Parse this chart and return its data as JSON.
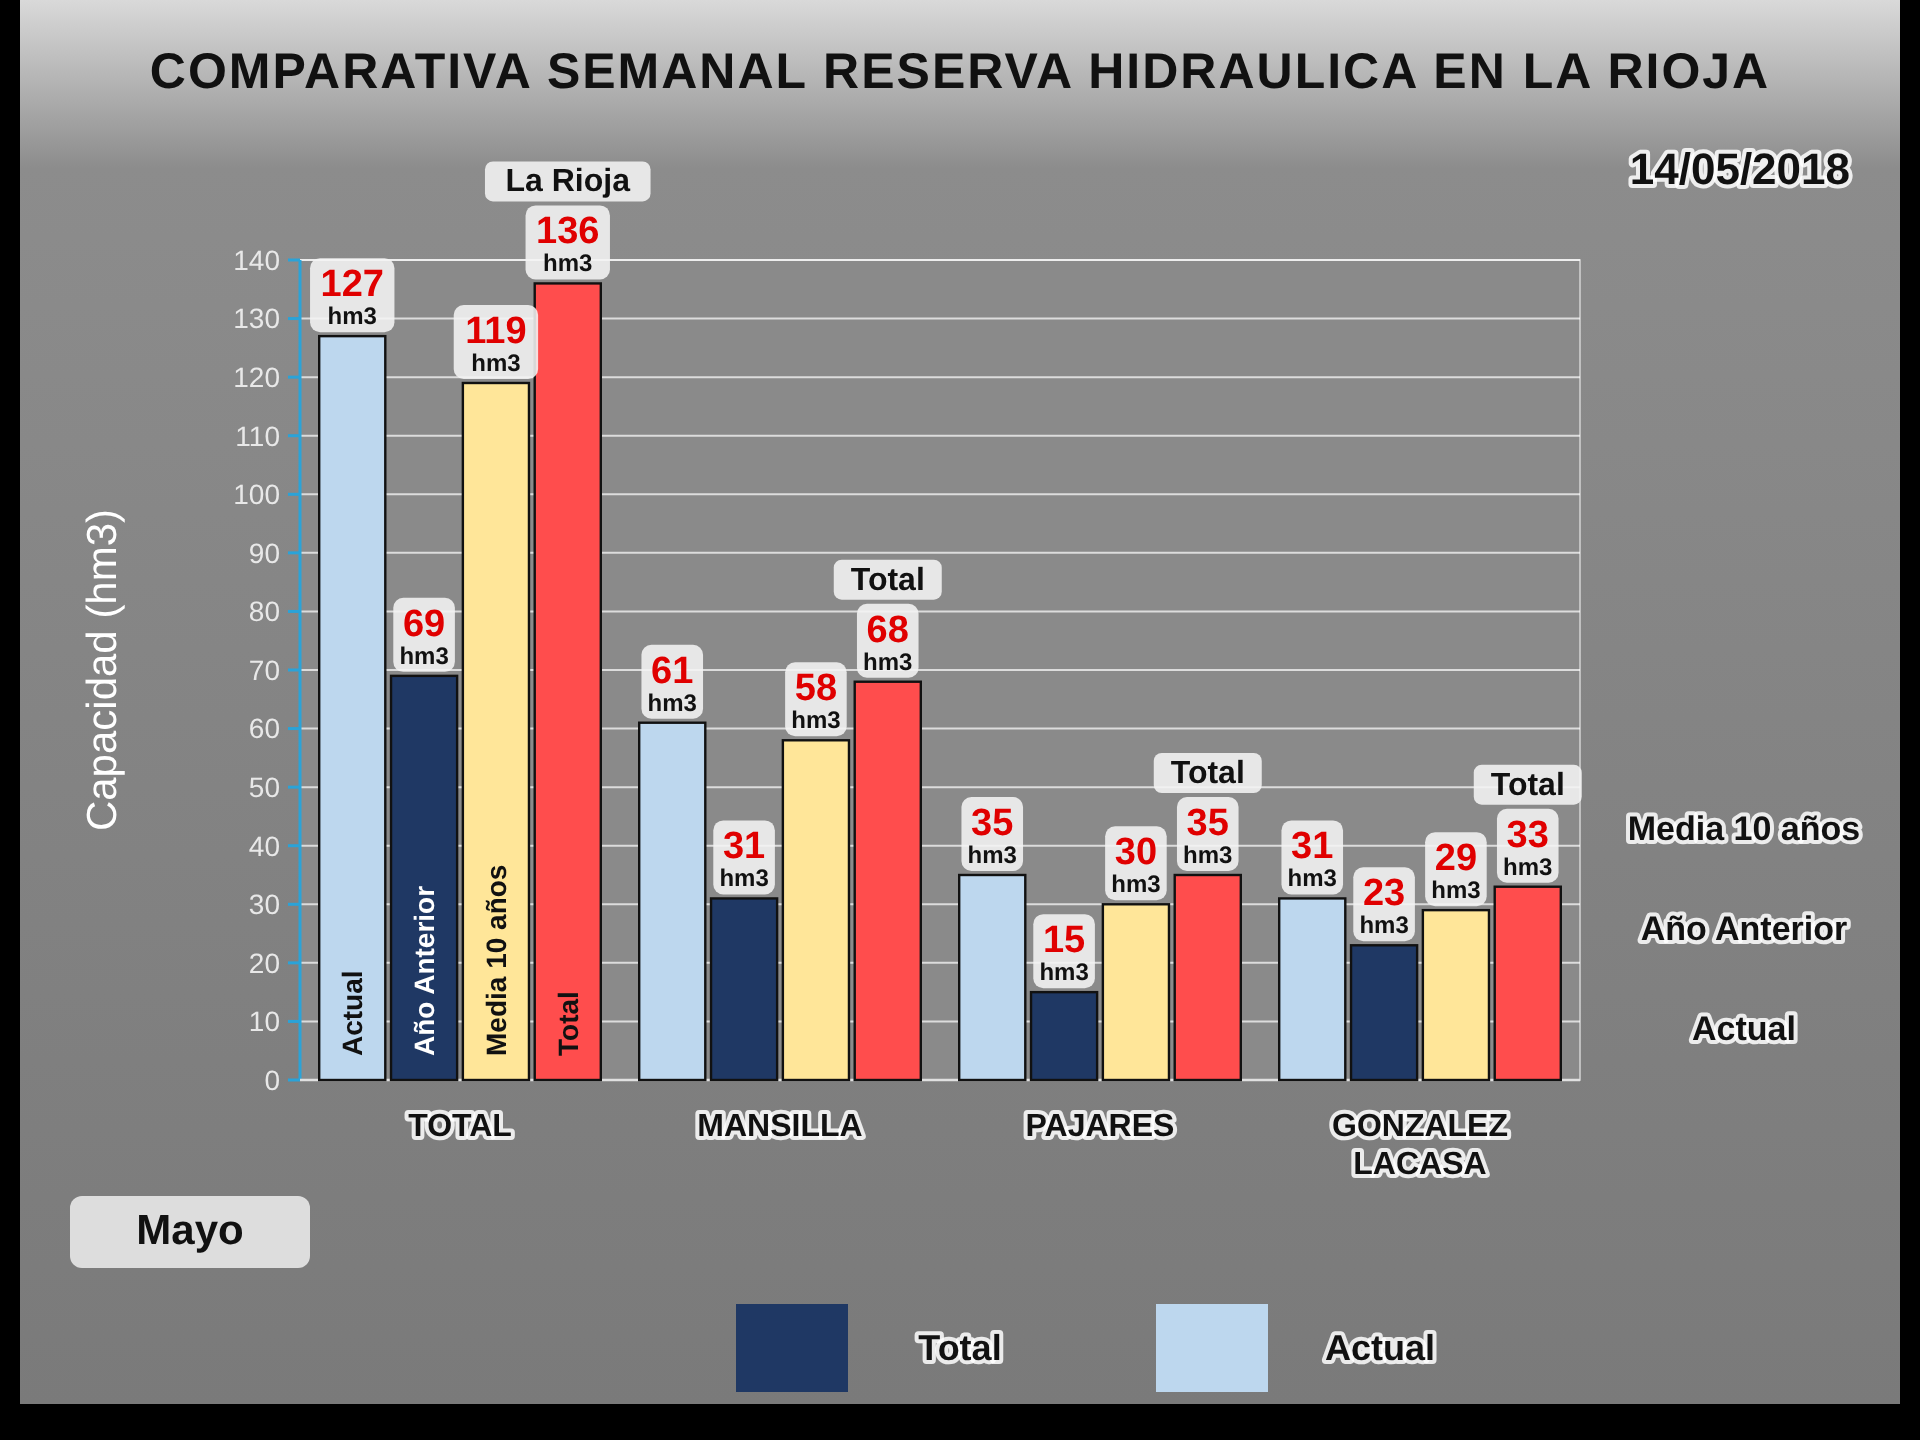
{
  "chart_data": {
    "type": "bar",
    "title": "COMPARATIVA SEMANAL RESERVA HIDRAULICA EN LA RIOJA",
    "subtitle": "14/05/2018",
    "ylabel": "Capacidad (hm3)",
    "categories": [
      "TOTAL",
      "MANSILLA",
      "PAJARES",
      "GONZALEZ LACASA"
    ],
    "series": [
      {
        "name": "Actual",
        "color": "#bdd7ee",
        "values": [
          127,
          61,
          35,
          31
        ],
        "value_labels": [
          "127 hm3",
          "61 hm3",
          "35 hm3",
          "31 hm3"
        ]
      },
      {
        "name": "Año Anterior",
        "color": "#1f3864",
        "values": [
          69,
          31,
          15,
          23
        ],
        "value_labels": [
          "69 hm3",
          "31 hm3",
          "15 hm3",
          "23 hm3"
        ]
      },
      {
        "name": "Media 10 años",
        "color": "#ffe699",
        "values": [
          119,
          58,
          30,
          29
        ],
        "value_labels": [
          "119 hm3",
          "58 hm3",
          "30 hm3",
          "29 hm3"
        ]
      },
      {
        "name": "Total",
        "color": "#ff4d4d",
        "values": [
          136,
          68,
          35,
          33
        ],
        "value_labels": [
          "136 hm3",
          "68 hm3",
          "35 hm3",
          "33 hm3"
        ]
      }
    ],
    "ylim": [
      0,
      140
    ],
    "yticks": [
      0,
      10,
      20,
      30,
      40,
      50,
      60,
      70,
      80,
      90,
      100,
      110,
      120,
      130,
      140
    ],
    "grid": "y",
    "annotations": [
      "Mayo",
      "Media 10 años",
      "Año Anterior",
      "Actual",
      "Total",
      "Actual",
      "La Rioja",
      "Total",
      "Total",
      "Total"
    ]
  }
}
